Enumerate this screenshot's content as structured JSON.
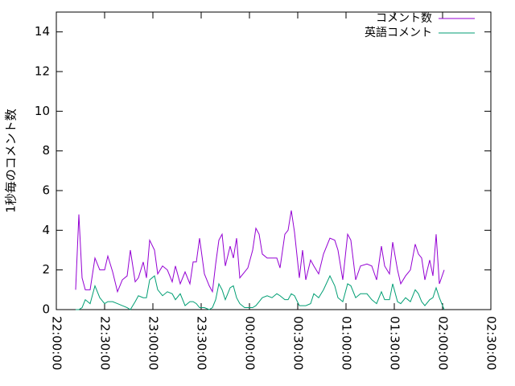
{
  "chart_data": {
    "type": "line",
    "ylabel": "1秒毎のコメント数",
    "x": [
      "22:12:00",
      "22:14:00",
      "22:16:00",
      "22:18:00",
      "22:21:00",
      "22:24:00",
      "22:27:00",
      "22:30:00",
      "22:32:00",
      "22:35:00",
      "22:38:00",
      "22:41:00",
      "22:44:00",
      "22:46:00",
      "22:49:00",
      "22:51:00",
      "22:54:00",
      "22:56:00",
      "22:58:00",
      "23:01:00",
      "23:03:00",
      "23:06:00",
      "23:09:00",
      "23:12:00",
      "23:14:00",
      "23:17:00",
      "23:20:00",
      "23:23:00",
      "23:25:00",
      "23:27:00",
      "23:29:00",
      "23:32:00",
      "23:35:00",
      "23:37:00",
      "23:39:00",
      "23:41:00",
      "23:43:00",
      "23:45:00",
      "23:48:00",
      "23:50:00",
      "23:52:00",
      "23:54:00",
      "23:57:00",
      "23:59:00",
      "00:02:00",
      "00:04:00",
      "00:06:00",
      "00:08:00",
      "00:11:00",
      "00:14:00",
      "00:17:00",
      "00:19:00",
      "00:22:00",
      "00:24:00",
      "00:26:00",
      "00:28:00",
      "00:31:00",
      "00:33:00",
      "00:35:00",
      "00:38:00",
      "00:40:00",
      "00:43:00",
      "00:46:00",
      "00:50:00",
      "00:53:00",
      "00:55:00",
      "00:58:00",
      "01:01:00",
      "01:03:00",
      "01:06:00",
      "01:09:00",
      "01:13:00",
      "01:16:00",
      "01:19:00",
      "01:22:00",
      "01:24:00",
      "01:27:00",
      "01:29:00",
      "01:32:00",
      "01:34:00",
      "01:37:00",
      "01:40:00",
      "01:43:00",
      "01:45:00",
      "01:47:00",
      "01:49:00",
      "01:52:00",
      "01:54:00",
      "01:56:00",
      "01:58:00",
      "02:01:00"
    ],
    "series": [
      {
        "name": "コメント数",
        "color": "#9400d3",
        "values": [
          1.0,
          4.8,
          1.6,
          1.0,
          1.0,
          2.6,
          2.0,
          2.0,
          2.7,
          1.9,
          0.9,
          1.5,
          1.7,
          3.0,
          1.4,
          1.6,
          2.4,
          1.6,
          3.5,
          3.0,
          1.8,
          2.2,
          2.0,
          1.4,
          2.2,
          1.3,
          1.9,
          1.3,
          2.4,
          2.4,
          3.6,
          1.8,
          1.2,
          0.9,
          2.3,
          3.5,
          3.8,
          2.2,
          3.2,
          2.6,
          3.6,
          1.6,
          1.9,
          2.1,
          3.0,
          4.1,
          3.8,
          2.8,
          2.6,
          2.6,
          2.6,
          2.1,
          3.8,
          4.0,
          5.0,
          3.9,
          1.6,
          3.0,
          1.5,
          2.5,
          2.2,
          1.8,
          2.8,
          3.6,
          3.5,
          3.0,
          1.5,
          3.8,
          3.5,
          1.5,
          2.2,
          2.3,
          2.2,
          1.5,
          3.2,
          2.2,
          1.8,
          3.4,
          2.0,
          1.3,
          1.7,
          2.0,
          3.3,
          2.8,
          2.6,
          1.5,
          2.5,
          1.7,
          3.8,
          1.3,
          2.0
        ]
      },
      {
        "name": "英語コメント",
        "color": "#009e73",
        "values": [
          0.0,
          0.0,
          0.1,
          0.5,
          0.3,
          1.2,
          0.6,
          0.3,
          0.4,
          0.4,
          0.3,
          0.2,
          0.1,
          0.0,
          0.4,
          0.7,
          0.6,
          0.6,
          1.5,
          1.7,
          1.0,
          0.7,
          0.9,
          0.8,
          0.5,
          0.8,
          0.2,
          0.4,
          0.4,
          0.3,
          0.1,
          0.1,
          0.0,
          0.1,
          0.5,
          1.3,
          1.0,
          0.5,
          1.1,
          1.2,
          0.6,
          0.3,
          0.1,
          0.1,
          0.1,
          0.2,
          0.4,
          0.6,
          0.7,
          0.6,
          0.8,
          0.7,
          0.5,
          0.5,
          0.8,
          0.7,
          0.2,
          0.2,
          0.2,
          0.3,
          0.8,
          0.6,
          1.0,
          1.7,
          1.2,
          0.6,
          0.4,
          1.3,
          1.2,
          0.6,
          0.8,
          0.8,
          0.5,
          0.3,
          0.9,
          0.5,
          0.5,
          1.3,
          0.4,
          0.3,
          0.6,
          0.4,
          1.0,
          0.8,
          0.4,
          0.2,
          0.5,
          0.6,
          1.1,
          0.6,
          0.0
        ]
      }
    ],
    "xlim": [
      "22:00:00",
      "02:30:00"
    ],
    "xticks": [
      "22:00:00",
      "22:30:00",
      "23:00:00",
      "23:30:00",
      "00:00:00",
      "00:30:00",
      "01:00:00",
      "01:30:00",
      "02:00:00",
      "02:30:00"
    ],
    "ylim": [
      0,
      15
    ],
    "yticks": [
      0,
      2,
      4,
      6,
      8,
      10,
      12,
      14
    ],
    "legend": "top right"
  }
}
